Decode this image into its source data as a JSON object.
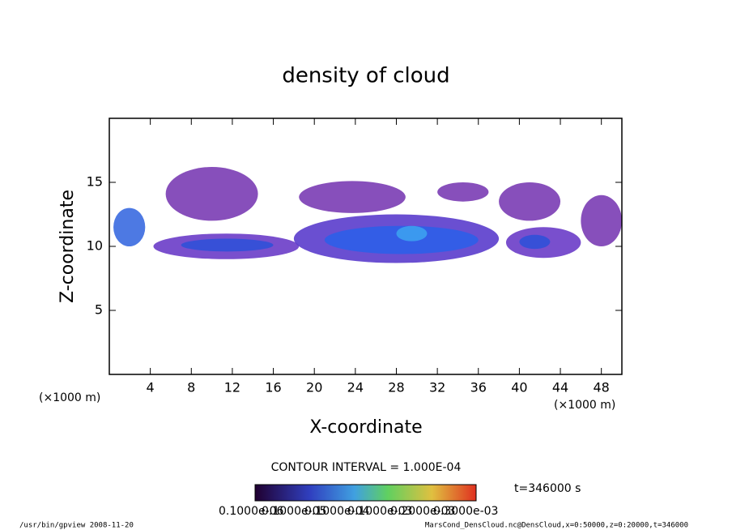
{
  "chart_data": {
    "type": "contour",
    "title": "density of cloud",
    "x_label": "X-coordinate",
    "y_label": "Z-coordinate",
    "x_unit": "(×1000 m)",
    "y_unit": "(×1000 m)",
    "xlim": [
      0,
      50
    ],
    "ylim": [
      0,
      20
    ],
    "xticks": [
      4,
      8,
      12,
      16,
      20,
      24,
      28,
      32,
      36,
      40,
      44,
      48
    ],
    "yticks": [
      5,
      10,
      15
    ],
    "regions": [
      {
        "x": [
          5.5,
          14.5
        ],
        "z": [
          12,
          16.2
        ],
        "color": "#7a3cb4"
      },
      {
        "x": [
          18.5,
          28.9
        ],
        "z": [
          12.6,
          15.1
        ],
        "color": "#7a3cb4"
      },
      {
        "x": [
          32,
          37
        ],
        "z": [
          13.5,
          15
        ],
        "color": "#7a3cb4"
      },
      {
        "x": [
          38,
          44
        ],
        "z": [
          12,
          15
        ],
        "color": "#7a3cb4"
      },
      {
        "x": [
          46,
          50
        ],
        "z": [
          10,
          14
        ],
        "color": "#7a3cb4"
      },
      {
        "x": [
          0.4,
          3.5
        ],
        "z": [
          10,
          13
        ],
        "color": "#3a6ae0"
      },
      {
        "x": [
          4.3,
          18.5
        ],
        "z": [
          9,
          11
        ],
        "color": "#6a3cc8"
      },
      {
        "x": [
          18,
          38
        ],
        "z": [
          8.7,
          12.5
        ],
        "color": "#5a3ccc"
      },
      {
        "x": [
          38.7,
          46
        ],
        "z": [
          9.1,
          11.5
        ],
        "color": "#6a3cc8"
      },
      {
        "x": [
          7,
          16
        ],
        "z": [
          9.6,
          10.6
        ],
        "color": "#3050d8"
      },
      {
        "x": [
          21,
          36
        ],
        "z": [
          9.4,
          11.6
        ],
        "color": "#2e5ee8"
      },
      {
        "x": [
          28,
          31
        ],
        "z": [
          10.4,
          11.6
        ],
        "color": "#3ca0f0"
      },
      {
        "x": [
          40,
          43
        ],
        "z": [
          9.8,
          10.9
        ],
        "color": "#3050d8"
      }
    ],
    "contour_interval": "CONTOUR INTERVAL = 1.000E-04",
    "colorbar_labels": [
      "0.1000e-06",
      "0.1000e-05",
      "0.1000e-04",
      "0.1000e-03",
      "0.2000e-03",
      "0.3000e-03"
    ],
    "time_label": "t=346000 s",
    "footer_left": "/usr/bin/gpview  2008-11-20",
    "footer_right": "MarsCond_DensCloud.nc@DensCloud,x=0:50000,z=0:20000,t=346000"
  }
}
